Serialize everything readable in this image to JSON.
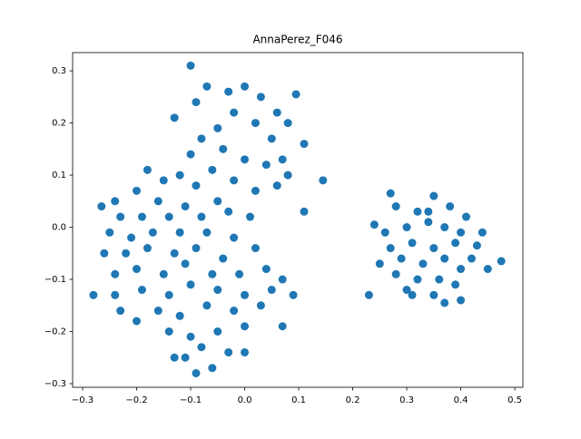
{
  "chart_data": {
    "type": "scatter",
    "title": "AnnaPerez_F046",
    "color": "#1f77b4",
    "x": [
      -0.1,
      -0.28,
      -0.265,
      0.145,
      0.11,
      -0.09,
      0.475,
      0.23,
      0.24,
      0.27,
      0.37,
      0.45,
      0.43,
      -0.2,
      -0.06,
      0.095,
      -0.03,
      0.0,
      0.03,
      0.06,
      -0.07,
      -0.13,
      -0.09,
      0.11,
      0.08,
      0.05,
      0.02,
      -0.02,
      -0.05,
      -0.08,
      -0.1,
      -0.04,
      0.0,
      0.04,
      0.08,
      0.07,
      -0.06,
      -0.12,
      -0.15,
      -0.18,
      -0.09,
      -0.02,
      0.02,
      0.06,
      -0.05,
      -0.11,
      -0.16,
      -0.2,
      -0.24,
      -0.23,
      -0.19,
      -0.14,
      -0.08,
      -0.03,
      0.01,
      -0.25,
      -0.21,
      -0.17,
      -0.12,
      -0.07,
      -0.02,
      0.02,
      -0.26,
      -0.22,
      -0.18,
      -0.13,
      -0.09,
      -0.04,
      -0.24,
      -0.2,
      -0.15,
      -0.11,
      -0.06,
      -0.01,
      0.04,
      0.07,
      -0.24,
      -0.19,
      -0.14,
      -0.1,
      -0.05,
      0.0,
      0.05,
      0.09,
      -0.23,
      -0.16,
      -0.12,
      -0.07,
      -0.02,
      0.03,
      0.07,
      -0.14,
      -0.1,
      -0.05,
      0.0,
      -0.13,
      -0.08,
      -0.03,
      0.0,
      -0.11,
      0.28,
      0.32,
      0.35,
      0.38,
      0.41,
      0.26,
      0.3,
      0.34,
      0.37,
      0.4,
      0.44,
      0.27,
      0.31,
      0.35,
      0.39,
      0.42,
      0.25,
      0.29,
      0.33,
      0.37,
      0.4,
      0.28,
      0.32,
      0.36,
      0.39,
      0.31,
      0.35,
      0.4,
      0.3,
      0.34
    ],
    "y": [
      0.31,
      -0.13,
      0.04,
      0.09,
      0.03,
      -0.28,
      -0.065,
      -0.13,
      0.005,
      0.065,
      -0.145,
      -0.08,
      -0.035,
      -0.18,
      -0.27,
      0.255,
      0.26,
      0.27,
      0.25,
      0.22,
      0.27,
      0.21,
      0.24,
      0.16,
      0.2,
      0.17,
      0.2,
      0.22,
      0.19,
      0.17,
      0.14,
      0.15,
      0.13,
      0.12,
      0.1,
      0.13,
      0.11,
      0.1,
      0.09,
      0.11,
      0.08,
      0.09,
      0.07,
      0.08,
      0.05,
      0.04,
      0.05,
      0.07,
      0.05,
      0.02,
      0.02,
      0.02,
      0.02,
      0.03,
      0.02,
      -0.01,
      -0.02,
      -0.01,
      -0.01,
      -0.01,
      -0.02,
      -0.04,
      -0.05,
      -0.05,
      -0.04,
      -0.05,
      -0.04,
      -0.06,
      -0.09,
      -0.08,
      -0.09,
      -0.07,
      -0.09,
      -0.09,
      -0.08,
      -0.1,
      -0.13,
      -0.12,
      -0.13,
      -0.11,
      -0.12,
      -0.13,
      -0.12,
      -0.13,
      -0.16,
      -0.16,
      -0.17,
      -0.15,
      -0.16,
      -0.15,
      -0.19,
      -0.2,
      -0.21,
      -0.2,
      -0.19,
      -0.25,
      -0.23,
      -0.24,
      -0.24,
      -0.25,
      0.04,
      0.03,
      0.06,
      0.04,
      0.02,
      -0.01,
      0.0,
      0.01,
      0.0,
      -0.01,
      -0.01,
      -0.04,
      -0.03,
      -0.04,
      -0.03,
      -0.06,
      -0.07,
      -0.06,
      -0.07,
      -0.06,
      -0.08,
      -0.09,
      -0.1,
      -0.1,
      -0.11,
      -0.13,
      -0.13,
      -0.14,
      -0.12,
      0.03
    ],
    "xlim": [
      -0.3185,
      0.515
    ],
    "ylim": [
      -0.307,
      0.335
    ],
    "xticks": [
      {
        "value": -0.3,
        "label": "−0.3"
      },
      {
        "value": -0.2,
        "label": "−0.2"
      },
      {
        "value": -0.1,
        "label": "−0.1"
      },
      {
        "value": 0,
        "label": "0.0"
      },
      0.1,
      0.2,
      0.3,
      0.4,
      0.5
    ],
    "yticks": [
      {
        "value": -0.3,
        "label": "−0.3"
      },
      {
        "value": -0.2,
        "label": "−0.2"
      },
      {
        "value": -0.1,
        "label": "−0.1"
      },
      {
        "value": 0,
        "label": "0.0"
      },
      0.1,
      0.2,
      0.3
    ]
  }
}
